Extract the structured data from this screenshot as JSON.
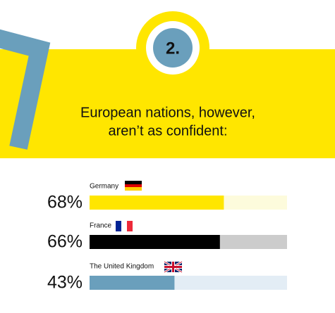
{
  "chart_data": {
    "type": "bar",
    "orientation": "horizontal",
    "badge": "2.",
    "title": [
      "European nations, however,",
      "aren’t as confident:"
    ],
    "categories": [
      "Germany",
      "France",
      "The United Kingdom"
    ],
    "values": [
      68,
      66,
      43
    ],
    "value_labels": [
      "68%",
      "66%",
      "43%"
    ],
    "colors": [
      "#ffe600",
      "#000000",
      "#6a9fbc"
    ],
    "track_colors": [
      "#fdfbdc",
      "#cccccc",
      "#e3edf5"
    ],
    "xlim": [
      0,
      100
    ]
  }
}
